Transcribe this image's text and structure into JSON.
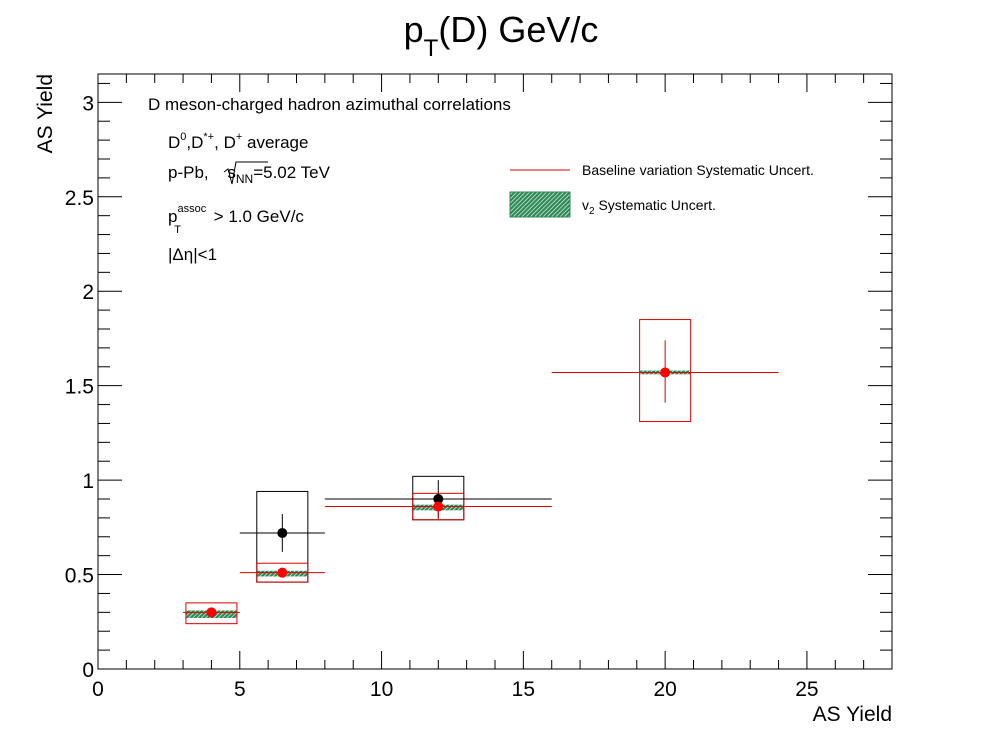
{
  "chart_data": {
    "type": "scatter",
    "title": {
      "main": "p",
      "sub": "T",
      "rest": "(D) GeV/c"
    },
    "xlabel": "AS Yield",
    "ylabel": "AS Yield",
    "xlim": [
      0,
      28
    ],
    "ylim": [
      0,
      3.15
    ],
    "x_ticks": [
      0,
      5,
      10,
      15,
      20,
      25
    ],
    "y_ticks": [
      0,
      0.5,
      1,
      1.5,
      2,
      2.5,
      3
    ],
    "x_tick_labels": [
      "0",
      "5",
      "10",
      "15",
      "20",
      "25"
    ],
    "y_tick_labels": [
      "0",
      "0.5",
      "1",
      "1.5",
      "2",
      "2.5",
      "3"
    ],
    "grid": false,
    "annotations": {
      "line1": "D meson-charged hadron azimuthal correlations",
      "line2": {
        "a": "D",
        "a_sup": "0",
        "b": ",D",
        "b_sup": "*+",
        "c": ", D",
        "c_sup": "+",
        "d": " average"
      },
      "line3": {
        "a": "p-Pb, ",
        "sqrt": "s",
        "sqrt_sub": "NN",
        "b": "=5.02 TeV"
      },
      "line4": {
        "a": "p",
        "a_sup": "assoc",
        "a_sub": "T",
        "b": " > 1.0 GeV/c"
      },
      "line5": "|Δη|<1"
    },
    "legend": {
      "placement": "top-right",
      "entries": [
        {
          "label": "Baseline variation Systematic Uncert.",
          "color": "#dd0000",
          "style": "line"
        },
        {
          "label_main": "v",
          "label_sub": "2",
          "label_rest": " Systematic Uncert.",
          "color": "#2e8b57",
          "style": "hatched-box"
        }
      ]
    },
    "series": [
      {
        "color": "#000000",
        "points": [
          {
            "x": 6.5,
            "y": 0.72,
            "xerr": [
              1.5,
              1.5
            ],
            "yerr": [
              0.1,
              0.1
            ],
            "sys_box": [
              5.6,
              7.4,
              0.46,
              0.94
            ]
          },
          {
            "x": 12.0,
            "y": 0.9,
            "xerr": [
              4.0,
              4.0
            ],
            "yerr": [
              0.1,
              0.1
            ],
            "sys_box": [
              11.1,
              12.9,
              0.79,
              1.02
            ]
          }
        ]
      },
      {
        "color": "#ff0000",
        "points": [
          {
            "x": 4.0,
            "y": 0.3,
            "xerr": [
              1.0,
              1.0
            ],
            "yerr": [
              0.02,
              0.02
            ],
            "sys_box": [
              3.1,
              4.9,
              0.24,
              0.35
            ],
            "v2_band": [
              3.1,
              4.9,
              0.27,
              0.31
            ]
          },
          {
            "x": 6.5,
            "y": 0.51,
            "xerr": [
              1.5,
              1.5
            ],
            "yerr": [
              0.02,
              0.02
            ],
            "sys_box": [
              5.6,
              7.4,
              0.46,
              0.56
            ],
            "v2_band": [
              5.6,
              7.4,
              0.49,
              0.52
            ]
          },
          {
            "x": 12.0,
            "y": 0.86,
            "xerr": [
              4.0,
              4.0
            ],
            "yerr": [
              0.07,
              0.07
            ],
            "sys_box": [
              11.1,
              12.9,
              0.79,
              0.93
            ],
            "v2_band": [
              11.1,
              12.9,
              0.84,
              0.87
            ]
          },
          {
            "x": 20.0,
            "y": 1.57,
            "xerr": [
              4.0,
              4.0
            ],
            "yerr": [
              0.16,
              0.17
            ],
            "sys_box": [
              19.1,
              20.9,
              1.31,
              1.85
            ],
            "v2_band": [
              19.1,
              20.9,
              1.56,
              1.58
            ]
          }
        ]
      }
    ]
  }
}
